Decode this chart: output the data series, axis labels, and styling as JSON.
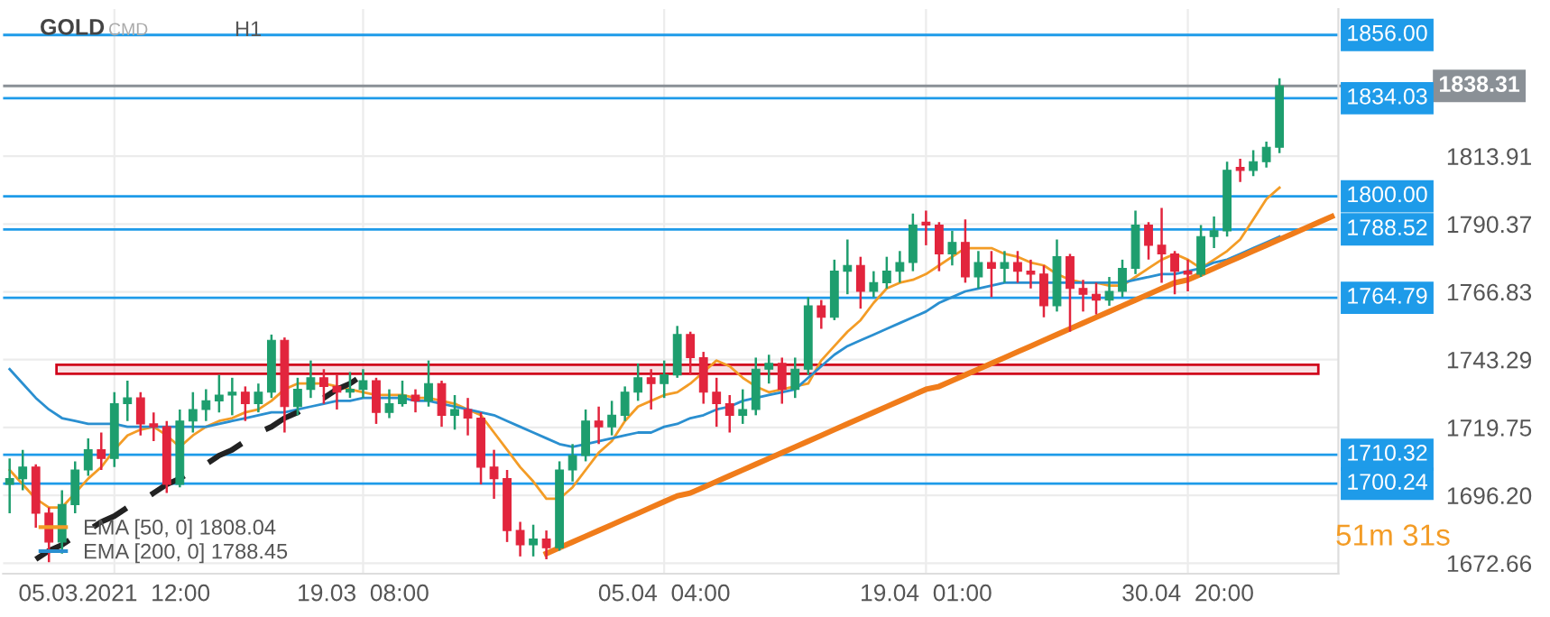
{
  "chart_data": {
    "type": "candlestick",
    "title": "GOLD",
    "annotations": [
      "CMD",
      "H1",
      "51m 31s"
    ],
    "categories": [
      null,
      null,
      null,
      null,
      null,
      null,
      null,
      null,
      "05.03.2021  12:00",
      null,
      null,
      null,
      null,
      null,
      null,
      null,
      null,
      null,
      null,
      null,
      null,
      null,
      null,
      null,
      null,
      null,
      null,
      "19.03  08:00",
      null,
      null,
      null,
      null,
      null,
      null,
      null,
      null,
      null,
      null,
      null,
      null,
      null,
      null,
      null,
      null,
      null,
      null,
      null,
      null,
      null,
      null,
      "05.04  04:00",
      null,
      null,
      null,
      null,
      null,
      null,
      null,
      null,
      null,
      null,
      null,
      null,
      null,
      null,
      null,
      null,
      null,
      null,
      null,
      "19.04  01:00",
      null,
      null,
      null,
      null,
      null,
      null,
      null,
      null,
      null,
      null,
      null,
      null,
      null,
      null,
      null,
      null,
      null,
      null,
      null,
      "30.04  20:00",
      null,
      null,
      null,
      null,
      null,
      null,
      null,
      null,
      null,
      null,
      null
    ],
    "ohlc": [
      [
        1700,
        1709,
        1690,
        1702
      ],
      [
        1702,
        1712,
        1698,
        1706
      ],
      [
        1706,
        1707,
        1685,
        1690
      ],
      [
        1690,
        1692,
        1673,
        1680
      ],
      [
        1680,
        1698,
        1676,
        1693
      ],
      [
        1693,
        1708,
        1690,
        1705
      ],
      [
        1705,
        1716,
        1703,
        1712
      ],
      [
        1712,
        1718,
        1705,
        1709
      ],
      [
        1709,
        1732,
        1706,
        1728
      ],
      [
        1728,
        1736,
        1722,
        1730
      ],
      [
        1730,
        1732,
        1717,
        1721
      ],
      [
        1721,
        1725,
        1715,
        1720
      ],
      [
        1720,
        1722,
        1697,
        1700
      ],
      [
        1700,
        1726,
        1699,
        1722
      ],
      [
        1722,
        1732,
        1718,
        1726
      ],
      [
        1726,
        1733,
        1722,
        1729
      ],
      [
        1729,
        1738,
        1725,
        1731
      ],
      [
        1731,
        1737,
        1724,
        1732
      ],
      [
        1732,
        1734,
        1722,
        1728
      ],
      [
        1728,
        1735,
        1725,
        1732
      ],
      [
        1732,
        1752,
        1730,
        1750
      ],
      [
        1750,
        1751,
        1718,
        1727
      ],
      [
        1727,
        1737,
        1724,
        1733
      ],
      [
        1733,
        1743,
        1730,
        1737
      ],
      [
        1737,
        1740,
        1728,
        1734
      ],
      [
        1734,
        1738,
        1726,
        1732
      ],
      [
        1732,
        1739,
        1730,
        1733
      ],
      [
        1733,
        1740,
        1730,
        1736
      ],
      [
        1736,
        1737,
        1721,
        1725
      ],
      [
        1725,
        1733,
        1723,
        1728
      ],
      [
        1728,
        1736,
        1727,
        1731
      ],
      [
        1731,
        1733,
        1725,
        1729
      ],
      [
        1729,
        1743,
        1727,
        1735
      ],
      [
        1735,
        1736,
        1720,
        1724
      ],
      [
        1724,
        1731,
        1719,
        1726
      ],
      [
        1726,
        1730,
        1717,
        1723
      ],
      [
        1723,
        1725,
        1700,
        1706
      ],
      [
        1706,
        1712,
        1695,
        1702
      ],
      [
        1702,
        1705,
        1680,
        1684
      ],
      [
        1684,
        1687,
        1675,
        1679
      ],
      [
        1679,
        1686,
        1675,
        1681
      ],
      [
        1681,
        1684,
        1674,
        1678
      ],
      [
        1678,
        1708,
        1677,
        1705
      ],
      [
        1705,
        1714,
        1701,
        1710
      ],
      [
        1710,
        1726,
        1708,
        1722
      ],
      [
        1722,
        1727,
        1714,
        1720
      ],
      [
        1720,
        1729,
        1717,
        1724
      ],
      [
        1724,
        1734,
        1722,
        1732
      ],
      [
        1732,
        1742,
        1729,
        1737
      ],
      [
        1737,
        1740,
        1726,
        1735
      ],
      [
        1735,
        1743,
        1730,
        1738
      ],
      [
        1738,
        1755,
        1737,
        1752
      ],
      [
        1752,
        1753,
        1738,
        1744
      ],
      [
        1744,
        1746,
        1728,
        1732
      ],
      [
        1732,
        1737,
        1720,
        1728
      ],
      [
        1728,
        1731,
        1718,
        1724
      ],
      [
        1724,
        1733,
        1721,
        1726
      ],
      [
        1726,
        1744,
        1724,
        1740
      ],
      [
        1740,
        1745,
        1735,
        1742
      ],
      [
        1742,
        1744,
        1728,
        1733
      ],
      [
        1733,
        1744,
        1730,
        1740
      ],
      [
        1740,
        1765,
        1738,
        1762
      ],
      [
        1762,
        1764,
        1754,
        1758
      ],
      [
        1758,
        1778,
        1757,
        1774
      ],
      [
        1774,
        1785,
        1766,
        1776
      ],
      [
        1776,
        1779,
        1761,
        1767
      ],
      [
        1767,
        1774,
        1765,
        1770
      ],
      [
        1770,
        1779,
        1768,
        1774
      ],
      [
        1774,
        1781,
        1770,
        1777
      ],
      [
        1777,
        1794,
        1774,
        1790
      ],
      [
        1791,
        1795,
        1783,
        1790
      ],
      [
        1790,
        1791,
        1774,
        1780
      ],
      [
        1780,
        1788,
        1776,
        1784
      ],
      [
        1784,
        1792,
        1770,
        1772
      ],
      [
        1772,
        1781,
        1768,
        1777
      ],
      [
        1777,
        1781,
        1765,
        1775
      ],
      [
        1775,
        1781,
        1770,
        1777
      ],
      [
        1777,
        1781,
        1770,
        1774
      ],
      [
        1774,
        1778,
        1768,
        1773
      ],
      [
        1773,
        1776,
        1758,
        1762
      ],
      [
        1762,
        1785,
        1760,
        1779
      ],
      [
        1779,
        1780,
        1753,
        1768
      ],
      [
        1768,
        1771,
        1760,
        1766
      ],
      [
        1766,
        1770,
        1759,
        1764
      ],
      [
        1764,
        1772,
        1762,
        1767
      ],
      [
        1767,
        1778,
        1765,
        1775
      ],
      [
        1775,
        1795,
        1773,
        1790
      ],
      [
        1790,
        1791,
        1778,
        1783
      ],
      [
        1783,
        1796,
        1770,
        1780
      ],
      [
        1780,
        1781,
        1766,
        1774
      ],
      [
        1774,
        1778,
        1767,
        1773
      ],
      [
        1773,
        1790,
        1772,
        1786
      ],
      [
        1786,
        1793,
        1782,
        1788
      ],
      [
        1788,
        1812,
        1786,
        1809
      ],
      [
        1810,
        1813,
        1805,
        1809
      ],
      [
        1809,
        1816,
        1807,
        1812
      ],
      [
        1812,
        1819,
        1810,
        1817
      ],
      [
        1817,
        1841,
        1815,
        1838.31
      ],
      null,
      null,
      null,
      null
    ],
    "colors": [
      "#1e9e6e",
      "#1e9e6e",
      "#e2253d",
      "#e2253d",
      "#1e9e6e",
      "#1e9e6e",
      "#1e9e6e",
      "#e2253d",
      "#1e9e6e",
      "#1e9e6e",
      "#e2253d",
      "#e2253d",
      "#e2253d",
      "#1e9e6e",
      "#1e9e6e",
      "#1e9e6e",
      "#1e9e6e",
      "#1e9e6e",
      "#e2253d",
      "#1e9e6e",
      "#1e9e6e",
      "#e2253d",
      "#1e9e6e",
      "#1e9e6e",
      "#e2253d",
      "#e2253d",
      "#1e9e6e",
      "#1e9e6e",
      "#e2253d",
      "#1e9e6e",
      "#1e9e6e",
      "#e2253d",
      "#1e9e6e",
      "#e2253d",
      "#1e9e6e",
      "#e2253d",
      "#e2253d",
      "#e2253d",
      "#e2253d",
      "#e2253d",
      "#1e9e6e",
      "#e2253d",
      "#1e9e6e",
      "#1e9e6e",
      "#1e9e6e",
      "#e2253d",
      "#1e9e6e",
      "#1e9e6e",
      "#1e9e6e",
      "#e2253d",
      "#1e9e6e",
      "#1e9e6e",
      "#e2253d",
      "#e2253d",
      "#e2253d",
      "#e2253d",
      "#1e9e6e",
      "#1e9e6e",
      "#1e9e6e",
      "#e2253d",
      "#1e9e6e",
      "#1e9e6e",
      "#e2253d",
      "#1e9e6e",
      "#1e9e6e",
      "#e2253d",
      "#1e9e6e",
      "#1e9e6e",
      "#1e9e6e",
      "#1e9e6e",
      "#e2253d",
      "#e2253d",
      "#1e9e6e",
      "#e2253d",
      "#1e9e6e",
      "#e2253d",
      "#1e9e6e",
      "#e2253d",
      "#e2253d",
      "#e2253d",
      "#1e9e6e",
      "#e2253d",
      "#e2253d",
      "#e2253d",
      "#1e9e6e",
      "#1e9e6e",
      "#1e9e6e",
      "#e2253d",
      "#e2253d",
      "#e2253d",
      "#e2253d",
      "#1e9e6e",
      "#1e9e6e",
      "#1e9e6e",
      "#e2253d",
      "#1e9e6e",
      "#1e9e6e",
      "#1e9e6e",
      null,
      null,
      null,
      null
    ],
    "series": [
      {
        "type": "line",
        "name": "EMA [50, 0] 1808.04",
        "color": "#f39c26",
        "values": [
          1705,
          1700,
          1695,
          1692,
          1692,
          1697,
          1702,
          1706,
          1712,
          1717,
          1719,
          1720,
          1717,
          1713,
          1717,
          1720,
          1722,
          1723,
          1725,
          1726,
          1729,
          1733,
          1735,
          1735,
          1735,
          1734,
          1733,
          1732,
          1731,
          1731,
          1731,
          1730,
          1730,
          1729,
          1728,
          1726,
          1724,
          1718,
          1712,
          1706,
          1701,
          1695,
          1695,
          1699,
          1705,
          1711,
          1715,
          1722,
          1727,
          1729,
          1731,
          1732,
          1735,
          1739,
          1743,
          1741,
          1737,
          1734,
          1732,
          1733,
          1734,
          1735,
          1743,
          1748,
          1753,
          1757,
          1763,
          1768,
          1770,
          1771,
          1773,
          1776,
          1779,
          1782,
          1782,
          1782,
          1780,
          1779,
          1777,
          1776,
          1773,
          1771,
          1770,
          1770,
          1769,
          1769,
          1772,
          1775,
          1778,
          1780,
          1778,
          1775,
          1778,
          1781,
          1785,
          1792,
          1799,
          1803,
          null,
          null,
          null,
          null
        ]
      },
      {
        "type": "line",
        "name": "EMA [200, 0] 1788.45",
        "color": "#2a8fd0",
        "values": [
          1740,
          1735,
          1730,
          1726,
          1723,
          1722,
          1721,
          1721,
          1721,
          1720,
          1720,
          1720,
          1720,
          1720,
          1720,
          1720,
          1721,
          1722,
          1723,
          1724,
          1725,
          1725,
          1726,
          1727,
          1728,
          1729,
          1729,
          1730,
          1730,
          1730,
          1730,
          1729,
          1729,
          1728,
          1727,
          1726,
          1725,
          1724,
          1722,
          1720,
          1718,
          1716,
          1714,
          1713,
          1714,
          1715,
          1716,
          1717,
          1718,
          1718,
          1720,
          1721,
          1723,
          1724,
          1726,
          1727,
          1729,
          1730,
          1731,
          1732,
          1733,
          1737,
          1741,
          1745,
          1748,
          1750,
          1752,
          1754,
          1756,
          1758,
          1760,
          1763,
          1765,
          1767,
          1768,
          1769,
          1770,
          1770,
          1770,
          1770,
          1770,
          1770,
          1770,
          1770,
          1770,
          1770,
          1771,
          1772,
          1773,
          1773,
          1774,
          1775,
          1777,
          1778,
          1780,
          1782,
          1784,
          1786,
          null,
          null,
          null,
          null
        ]
      },
      {
        "type": "line",
        "color": "#f07c1a",
        "values": [
          null,
          null,
          null,
          null,
          null,
          null,
          null,
          null,
          null,
          null,
          null,
          null,
          null,
          null,
          null,
          null,
          null,
          null,
          null,
          null,
          null,
          null,
          null,
          null,
          null,
          null,
          null,
          null,
          null,
          null,
          null,
          null,
          null,
          null,
          null,
          null,
          null,
          null,
          null,
          null,
          null,
          1676,
          1678,
          1680,
          1682,
          1684,
          1686,
          1688,
          1690,
          1692,
          1694,
          1696,
          1697,
          1699,
          1701,
          1703,
          1705,
          1707,
          1709,
          1711,
          1713,
          1715,
          1717,
          1719,
          1721,
          1723,
          1725,
          1727,
          1729,
          1731,
          1733,
          1734,
          1736,
          1738,
          1740,
          1742,
          1744,
          1746,
          1748,
          1750,
          1752,
          1754,
          1756,
          1758,
          1760,
          1762,
          1764,
          1766,
          1768,
          1770,
          1771,
          1773,
          1775,
          1777,
          1779,
          1781,
          1783,
          1785,
          1787,
          1789,
          1791,
          1793
        ]
      },
      {
        "type": "line",
        "color": "#222222",
        "line_style": "dashed",
        "values": [
          null,
          null,
          1674,
          1677,
          1679,
          1682,
          1684,
          1687,
          1689,
          1692,
          1694,
          1697,
          1700,
          1702,
          1705,
          1707,
          1710,
          1712,
          1715,
          1718,
          1720,
          1723,
          1725,
          1728,
          1730,
          1733,
          1735,
          1738,
          null,
          null,
          null,
          null,
          null,
          null,
          null,
          null,
          null,
          null,
          null,
          null,
          null,
          null,
          null,
          null,
          null,
          null,
          null,
          null,
          null,
          null,
          null,
          null,
          null,
          null,
          null,
          null,
          null,
          null,
          null,
          null,
          null,
          null,
          null,
          null,
          null,
          null,
          null,
          null,
          null,
          null,
          null,
          null,
          null,
          null,
          null,
          null,
          null,
          null,
          null,
          null,
          null,
          null,
          null,
          null,
          null,
          null,
          null,
          null,
          null,
          null,
          null,
          null,
          null,
          null,
          null,
          null,
          null,
          null,
          null,
          null,
          null,
          null
        ]
      }
    ],
    "ref_lines": [
      {
        "axis": "y",
        "value": 1856.0,
        "label": "1856.00",
        "color": "#1e9be9"
      },
      {
        "axis": "y",
        "value": 1838.31,
        "label": "1838.31",
        "color": "#8a9096"
      },
      {
        "axis": "y",
        "value": 1834.03,
        "label": "1834.03",
        "color": "#1e9be9"
      },
      {
        "axis": "y",
        "value": 1800.0,
        "label": "1800.00",
        "color": "#1e9be9"
      },
      {
        "axis": "y",
        "value": 1788.52,
        "label": "1788.52",
        "color": "#1e9be9"
      },
      {
        "axis": "y",
        "value": 1764.79,
        "label": "1764.79",
        "color": "#1e9be9"
      },
      {
        "axis": "y",
        "value": 1710.32,
        "label": "1710.32",
        "color": "#1e9be9"
      },
      {
        "axis": "y",
        "value": 1700.24,
        "label": "1700.24",
        "color": "#1e9be9"
      }
    ],
    "bands": [
      {
        "axis": "y",
        "from": 1738.4,
        "to": 1741.5,
        "color": "#d0021b"
      }
    ],
    "ylim": [
      1669,
      1865
    ],
    "yticks": [
      1672.66,
      {
        "value": 1696.2,
        "label": "1696.20"
      },
      1719.75,
      1743.29,
      1766.83,
      1790.37,
      1813.91
    ],
    "grid": true,
    "legend": "bottom left"
  }
}
